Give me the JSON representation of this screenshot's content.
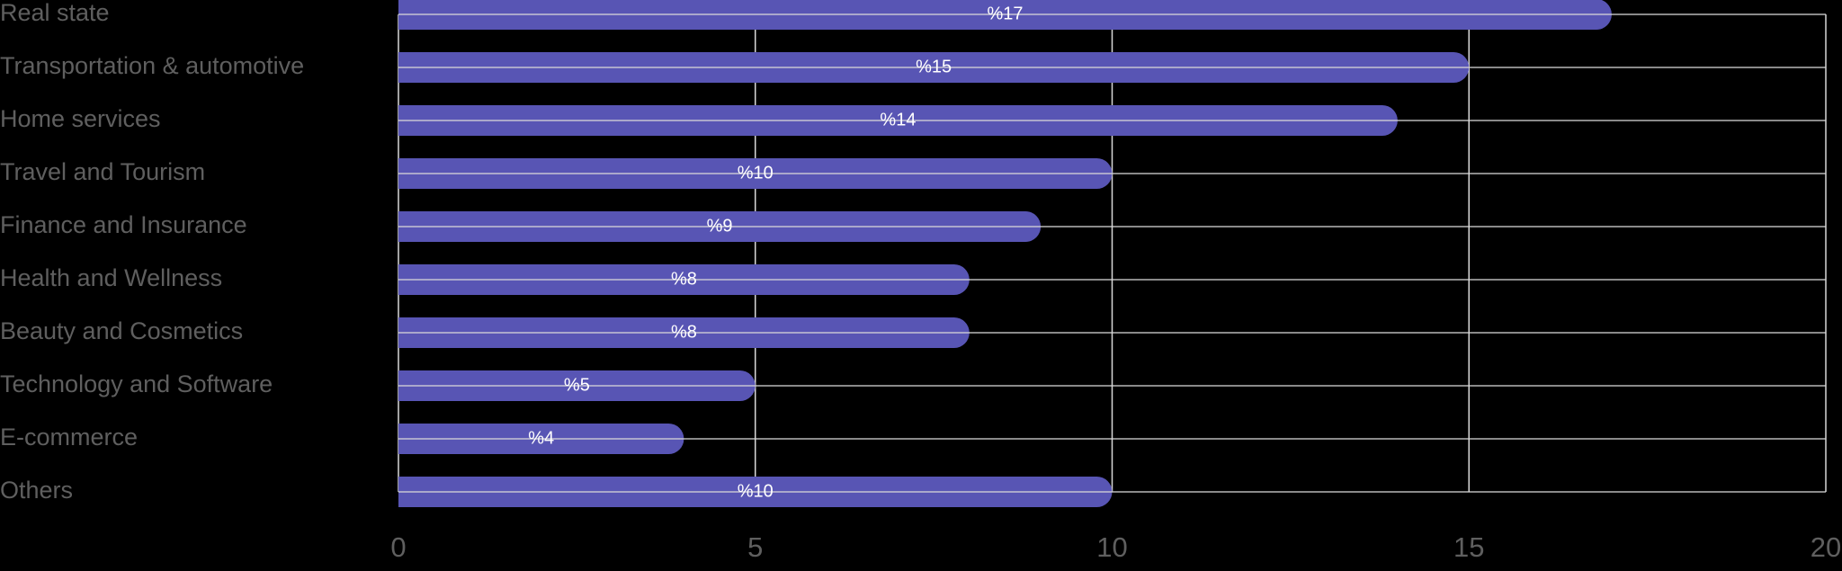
{
  "chart_data": {
    "type": "bar",
    "orientation": "horizontal",
    "categories": [
      "Real state",
      "Transportation & automotive",
      "Home services",
      "Travel and Tourism",
      "Finance and Insurance",
      "Health and Wellness",
      "Beauty and Cosmetics",
      "Technology and Software",
      "E-commerce",
      "Others"
    ],
    "values": [
      17,
      15,
      14,
      10,
      9,
      8,
      8,
      5,
      4,
      10
    ],
    "value_labels": [
      "%17",
      "%15",
      "%14",
      "%10",
      "%9",
      "%8",
      "%8",
      "%5",
      "%4",
      "%10"
    ],
    "color": "#5855b4",
    "xlim": [
      0,
      20
    ],
    "xticks": [
      0,
      5,
      10,
      15,
      20
    ],
    "grid": true
  }
}
